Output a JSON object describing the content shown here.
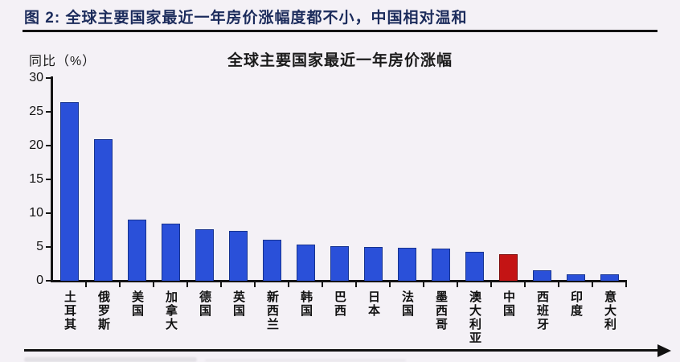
{
  "figure": {
    "caption": "图 2: 全球主要国家最近一年房价涨幅度都不小，中国相对温和"
  },
  "chart_data": {
    "type": "bar",
    "title": "全球主要国家最近一年房价涨幅",
    "ylabel": "同比（%）",
    "categories": [
      "土耳其",
      "俄罗斯",
      "美国",
      "加拿大",
      "德国",
      "英国",
      "新西兰",
      "韩国",
      "巴西",
      "日本",
      "法国",
      "墨西哥",
      "澳大利亚",
      "中国",
      "西班牙",
      "印度",
      "意大利"
    ],
    "values": [
      26.4,
      20.9,
      9.1,
      8.5,
      7.6,
      7.4,
      6.1,
      5.4,
      5.1,
      5.0,
      4.9,
      4.8,
      4.3,
      3.9,
      1.6,
      0.9,
      0.9
    ],
    "bar_color": "#2a50d9",
    "bar_border_color": "#17338f",
    "highlight_index": 13,
    "highlight_color": "#c41414",
    "highlight_border_color": "#7e0d0d",
    "ylim": [
      0,
      30
    ],
    "yticks": [
      0,
      5,
      10,
      15,
      20,
      25,
      30
    ],
    "grid": false,
    "legend_position": "none"
  }
}
